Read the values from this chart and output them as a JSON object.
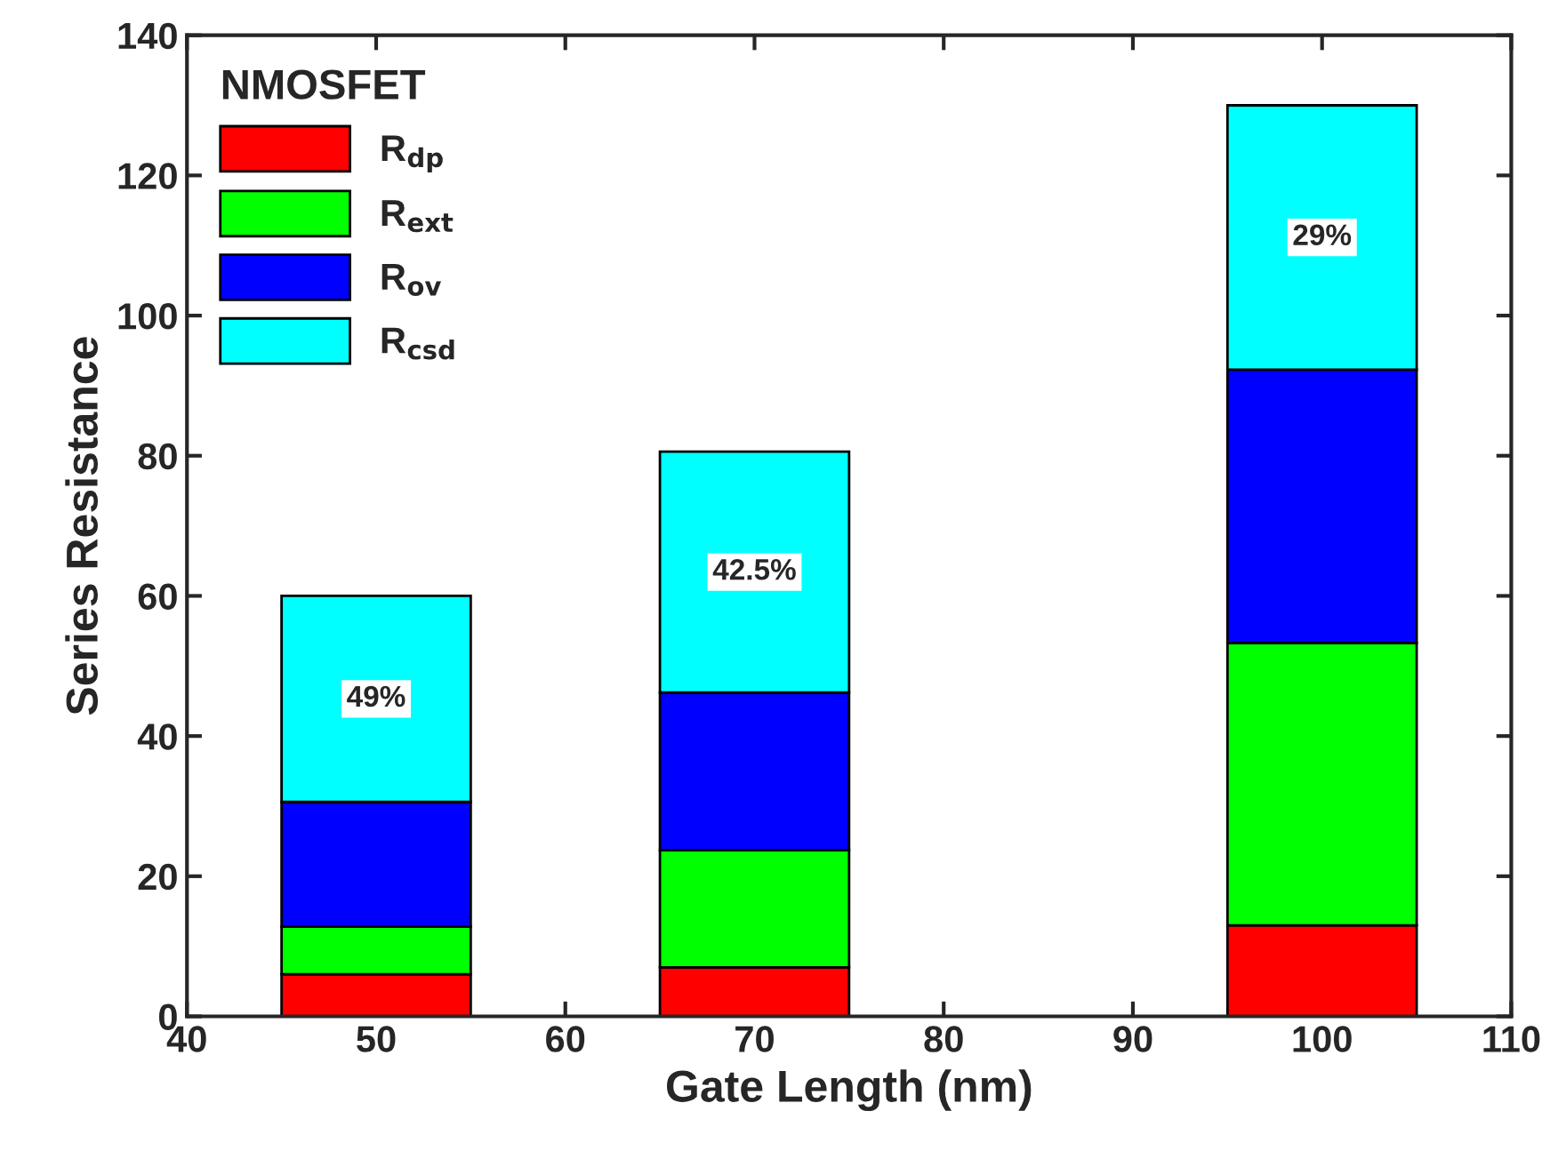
{
  "chart_data": {
    "type": "bar",
    "stacked": true,
    "xlabel": "Gate Length (nm)",
    "ylabel": "Series Resistance",
    "legend_title": "NMOSFET",
    "legend": "top left",
    "grid": false,
    "x": [
      50,
      70,
      100
    ],
    "series": [
      {
        "name": "R$_{dp}$",
        "color": "#ff0000",
        "values": [
          6,
          7,
          13
        ]
      },
      {
        "name": "R$_{ext}$",
        "color": "#00ff00",
        "values": [
          6.8,
          16.7,
          40.3
        ]
      },
      {
        "name": "R$_{ov}$",
        "color": "#0000ff",
        "values": [
          17.8,
          22.5,
          39
        ]
      },
      {
        "name": "R$_{csd}$",
        "color": "#00ffff",
        "values": [
          29.4,
          34.4,
          37.7
        ]
      }
    ],
    "annotations": [
      "49%",
      "42.5%",
      "29%"
    ],
    "xlim": [
      40,
      110
    ],
    "xticks": [
      40,
      50,
      60,
      70,
      80,
      90,
      100,
      110
    ],
    "ylim": [
      0,
      140
    ],
    "yticks": [
      0,
      20,
      40,
      60,
      80,
      100,
      120,
      140
    ]
  }
}
